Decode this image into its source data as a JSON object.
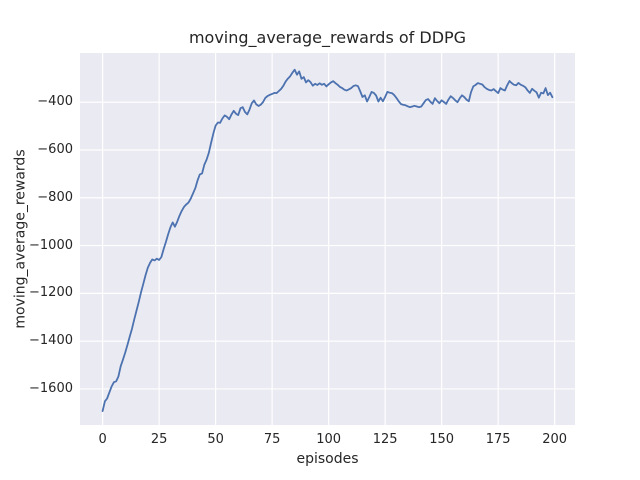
{
  "chart_data": {
    "type": "line",
    "title": "moving_average_rewards of DDPG",
    "xlabel": "episodes",
    "ylabel": "moving_average_rewards",
    "xlim": [
      -10,
      209
    ],
    "ylim": [
      -1751,
      -194
    ],
    "xticks": [
      0,
      25,
      50,
      75,
      100,
      125,
      150,
      175,
      200
    ],
    "xtick_labels": [
      "0",
      "25",
      "50",
      "75",
      "100",
      "125",
      "150",
      "175",
      "200"
    ],
    "yticks": [
      -400,
      -600,
      -800,
      -1000,
      -1200,
      -1400,
      -1600
    ],
    "ytick_labels": [
      "−400",
      "−600",
      "−800",
      "−1000",
      "−1200",
      "−1400",
      "−1600"
    ],
    "grid": true,
    "legend": "none",
    "style": {
      "figure_background": "#FFFFFF",
      "plot_background": "#EAEAF2",
      "grid_color": "#FFFFFF",
      "line_color": "#4C72B0",
      "line_width": 1.8,
      "text_color": "#262626"
    },
    "series": [
      {
        "name": "DDPG moving average rewards",
        "points": [
          [
            0,
            -1693
          ],
          [
            1,
            -1652
          ],
          [
            2,
            -1640
          ],
          [
            3,
            -1614
          ],
          [
            4,
            -1590
          ],
          [
            5,
            -1572
          ],
          [
            6,
            -1568
          ],
          [
            7,
            -1548
          ],
          [
            8,
            -1505
          ],
          [
            9,
            -1478
          ],
          [
            10,
            -1448
          ],
          [
            11,
            -1415
          ],
          [
            12,
            -1382
          ],
          [
            13,
            -1348
          ],
          [
            14,
            -1310
          ],
          [
            15,
            -1272
          ],
          [
            16,
            -1235
          ],
          [
            17,
            -1196
          ],
          [
            18,
            -1160
          ],
          [
            19,
            -1125
          ],
          [
            20,
            -1093
          ],
          [
            21,
            -1072
          ],
          [
            22,
            -1058
          ],
          [
            23,
            -1062
          ],
          [
            24,
            -1055
          ],
          [
            25,
            -1060
          ],
          [
            26,
            -1048
          ],
          [
            27,
            -1015
          ],
          [
            28,
            -985
          ],
          [
            29,
            -952
          ],
          [
            30,
            -924
          ],
          [
            31,
            -903
          ],
          [
            32,
            -921
          ],
          [
            33,
            -900
          ],
          [
            34,
            -875
          ],
          [
            35,
            -855
          ],
          [
            36,
            -838
          ],
          [
            37,
            -828
          ],
          [
            38,
            -820
          ],
          [
            39,
            -803
          ],
          [
            40,
            -782
          ],
          [
            41,
            -760
          ],
          [
            42,
            -728
          ],
          [
            43,
            -702
          ],
          [
            44,
            -698
          ],
          [
            45,
            -662
          ],
          [
            46,
            -640
          ],
          [
            47,
            -612
          ],
          [
            48,
            -570
          ],
          [
            49,
            -530
          ],
          [
            50,
            -498
          ],
          [
            51,
            -485
          ],
          [
            52,
            -486
          ],
          [
            53,
            -468
          ],
          [
            54,
            -455
          ],
          [
            55,
            -461
          ],
          [
            56,
            -471
          ],
          [
            57,
            -452
          ],
          [
            58,
            -436
          ],
          [
            59,
            -448
          ],
          [
            60,
            -454
          ],
          [
            61,
            -425
          ],
          [
            62,
            -421
          ],
          [
            63,
            -441
          ],
          [
            64,
            -451
          ],
          [
            65,
            -431
          ],
          [
            66,
            -404
          ],
          [
            67,
            -393
          ],
          [
            68,
            -409
          ],
          [
            69,
            -416
          ],
          [
            70,
            -410
          ],
          [
            71,
            -399
          ],
          [
            72,
            -382
          ],
          [
            73,
            -374
          ],
          [
            74,
            -369
          ],
          [
            75,
            -365
          ],
          [
            76,
            -361
          ],
          [
            77,
            -362
          ],
          [
            78,
            -353
          ],
          [
            79,
            -344
          ],
          [
            80,
            -331
          ],
          [
            81,
            -313
          ],
          [
            82,
            -301
          ],
          [
            83,
            -291
          ],
          [
            84,
            -276
          ],
          [
            85,
            -264
          ],
          [
            86,
            -285
          ],
          [
            87,
            -271
          ],
          [
            88,
            -302
          ],
          [
            89,
            -295
          ],
          [
            90,
            -317
          ],
          [
            91,
            -308
          ],
          [
            92,
            -316
          ],
          [
            93,
            -331
          ],
          [
            94,
            -323
          ],
          [
            95,
            -328
          ],
          [
            96,
            -321
          ],
          [
            97,
            -327
          ],
          [
            98,
            -323
          ],
          [
            99,
            -334
          ],
          [
            100,
            -325
          ],
          [
            101,
            -317
          ],
          [
            102,
            -312
          ],
          [
            103,
            -320
          ],
          [
            104,
            -327
          ],
          [
            105,
            -336
          ],
          [
            106,
            -341
          ],
          [
            107,
            -348
          ],
          [
            108,
            -351
          ],
          [
            109,
            -346
          ],
          [
            110,
            -341
          ],
          [
            111,
            -332
          ],
          [
            112,
            -329
          ],
          [
            113,
            -333
          ],
          [
            114,
            -355
          ],
          [
            115,
            -378
          ],
          [
            116,
            -371
          ],
          [
            117,
            -397
          ],
          [
            118,
            -378
          ],
          [
            119,
            -357
          ],
          [
            120,
            -361
          ],
          [
            121,
            -372
          ],
          [
            122,
            -397
          ],
          [
            123,
            -381
          ],
          [
            124,
            -396
          ],
          [
            125,
            -378
          ],
          [
            126,
            -357
          ],
          [
            127,
            -360
          ],
          [
            128,
            -362
          ],
          [
            129,
            -370
          ],
          [
            130,
            -382
          ],
          [
            131,
            -396
          ],
          [
            132,
            -408
          ],
          [
            133,
            -411
          ],
          [
            134,
            -413
          ],
          [
            135,
            -417
          ],
          [
            136,
            -421
          ],
          [
            137,
            -418
          ],
          [
            138,
            -415
          ],
          [
            139,
            -418
          ],
          [
            140,
            -421
          ],
          [
            141,
            -418
          ],
          [
            142,
            -404
          ],
          [
            143,
            -391
          ],
          [
            144,
            -387
          ],
          [
            145,
            -398
          ],
          [
            146,
            -407
          ],
          [
            147,
            -383
          ],
          [
            148,
            -395
          ],
          [
            149,
            -404
          ],
          [
            150,
            -392
          ],
          [
            151,
            -399
          ],
          [
            152,
            -407
          ],
          [
            153,
            -389
          ],
          [
            154,
            -375
          ],
          [
            155,
            -382
          ],
          [
            156,
            -392
          ],
          [
            157,
            -400
          ],
          [
            158,
            -384
          ],
          [
            159,
            -371
          ],
          [
            160,
            -378
          ],
          [
            161,
            -389
          ],
          [
            162,
            -396
          ],
          [
            163,
            -358
          ],
          [
            164,
            -334
          ],
          [
            165,
            -328
          ],
          [
            166,
            -320
          ],
          [
            167,
            -323
          ],
          [
            168,
            -326
          ],
          [
            169,
            -337
          ],
          [
            170,
            -344
          ],
          [
            171,
            -349
          ],
          [
            172,
            -351
          ],
          [
            173,
            -345
          ],
          [
            174,
            -354
          ],
          [
            175,
            -362
          ],
          [
            176,
            -341
          ],
          [
            177,
            -347
          ],
          [
            178,
            -351
          ],
          [
            179,
            -329
          ],
          [
            180,
            -311
          ],
          [
            181,
            -320
          ],
          [
            182,
            -327
          ],
          [
            183,
            -329
          ],
          [
            184,
            -319
          ],
          [
            185,
            -327
          ],
          [
            186,
            -331
          ],
          [
            187,
            -337
          ],
          [
            188,
            -350
          ],
          [
            189,
            -361
          ],
          [
            190,
            -344
          ],
          [
            191,
            -352
          ],
          [
            192,
            -359
          ],
          [
            193,
            -381
          ],
          [
            194,
            -360
          ],
          [
            195,
            -363
          ],
          [
            196,
            -341
          ],
          [
            197,
            -370
          ],
          [
            198,
            -360
          ],
          [
            199,
            -379
          ]
        ]
      }
    ]
  }
}
